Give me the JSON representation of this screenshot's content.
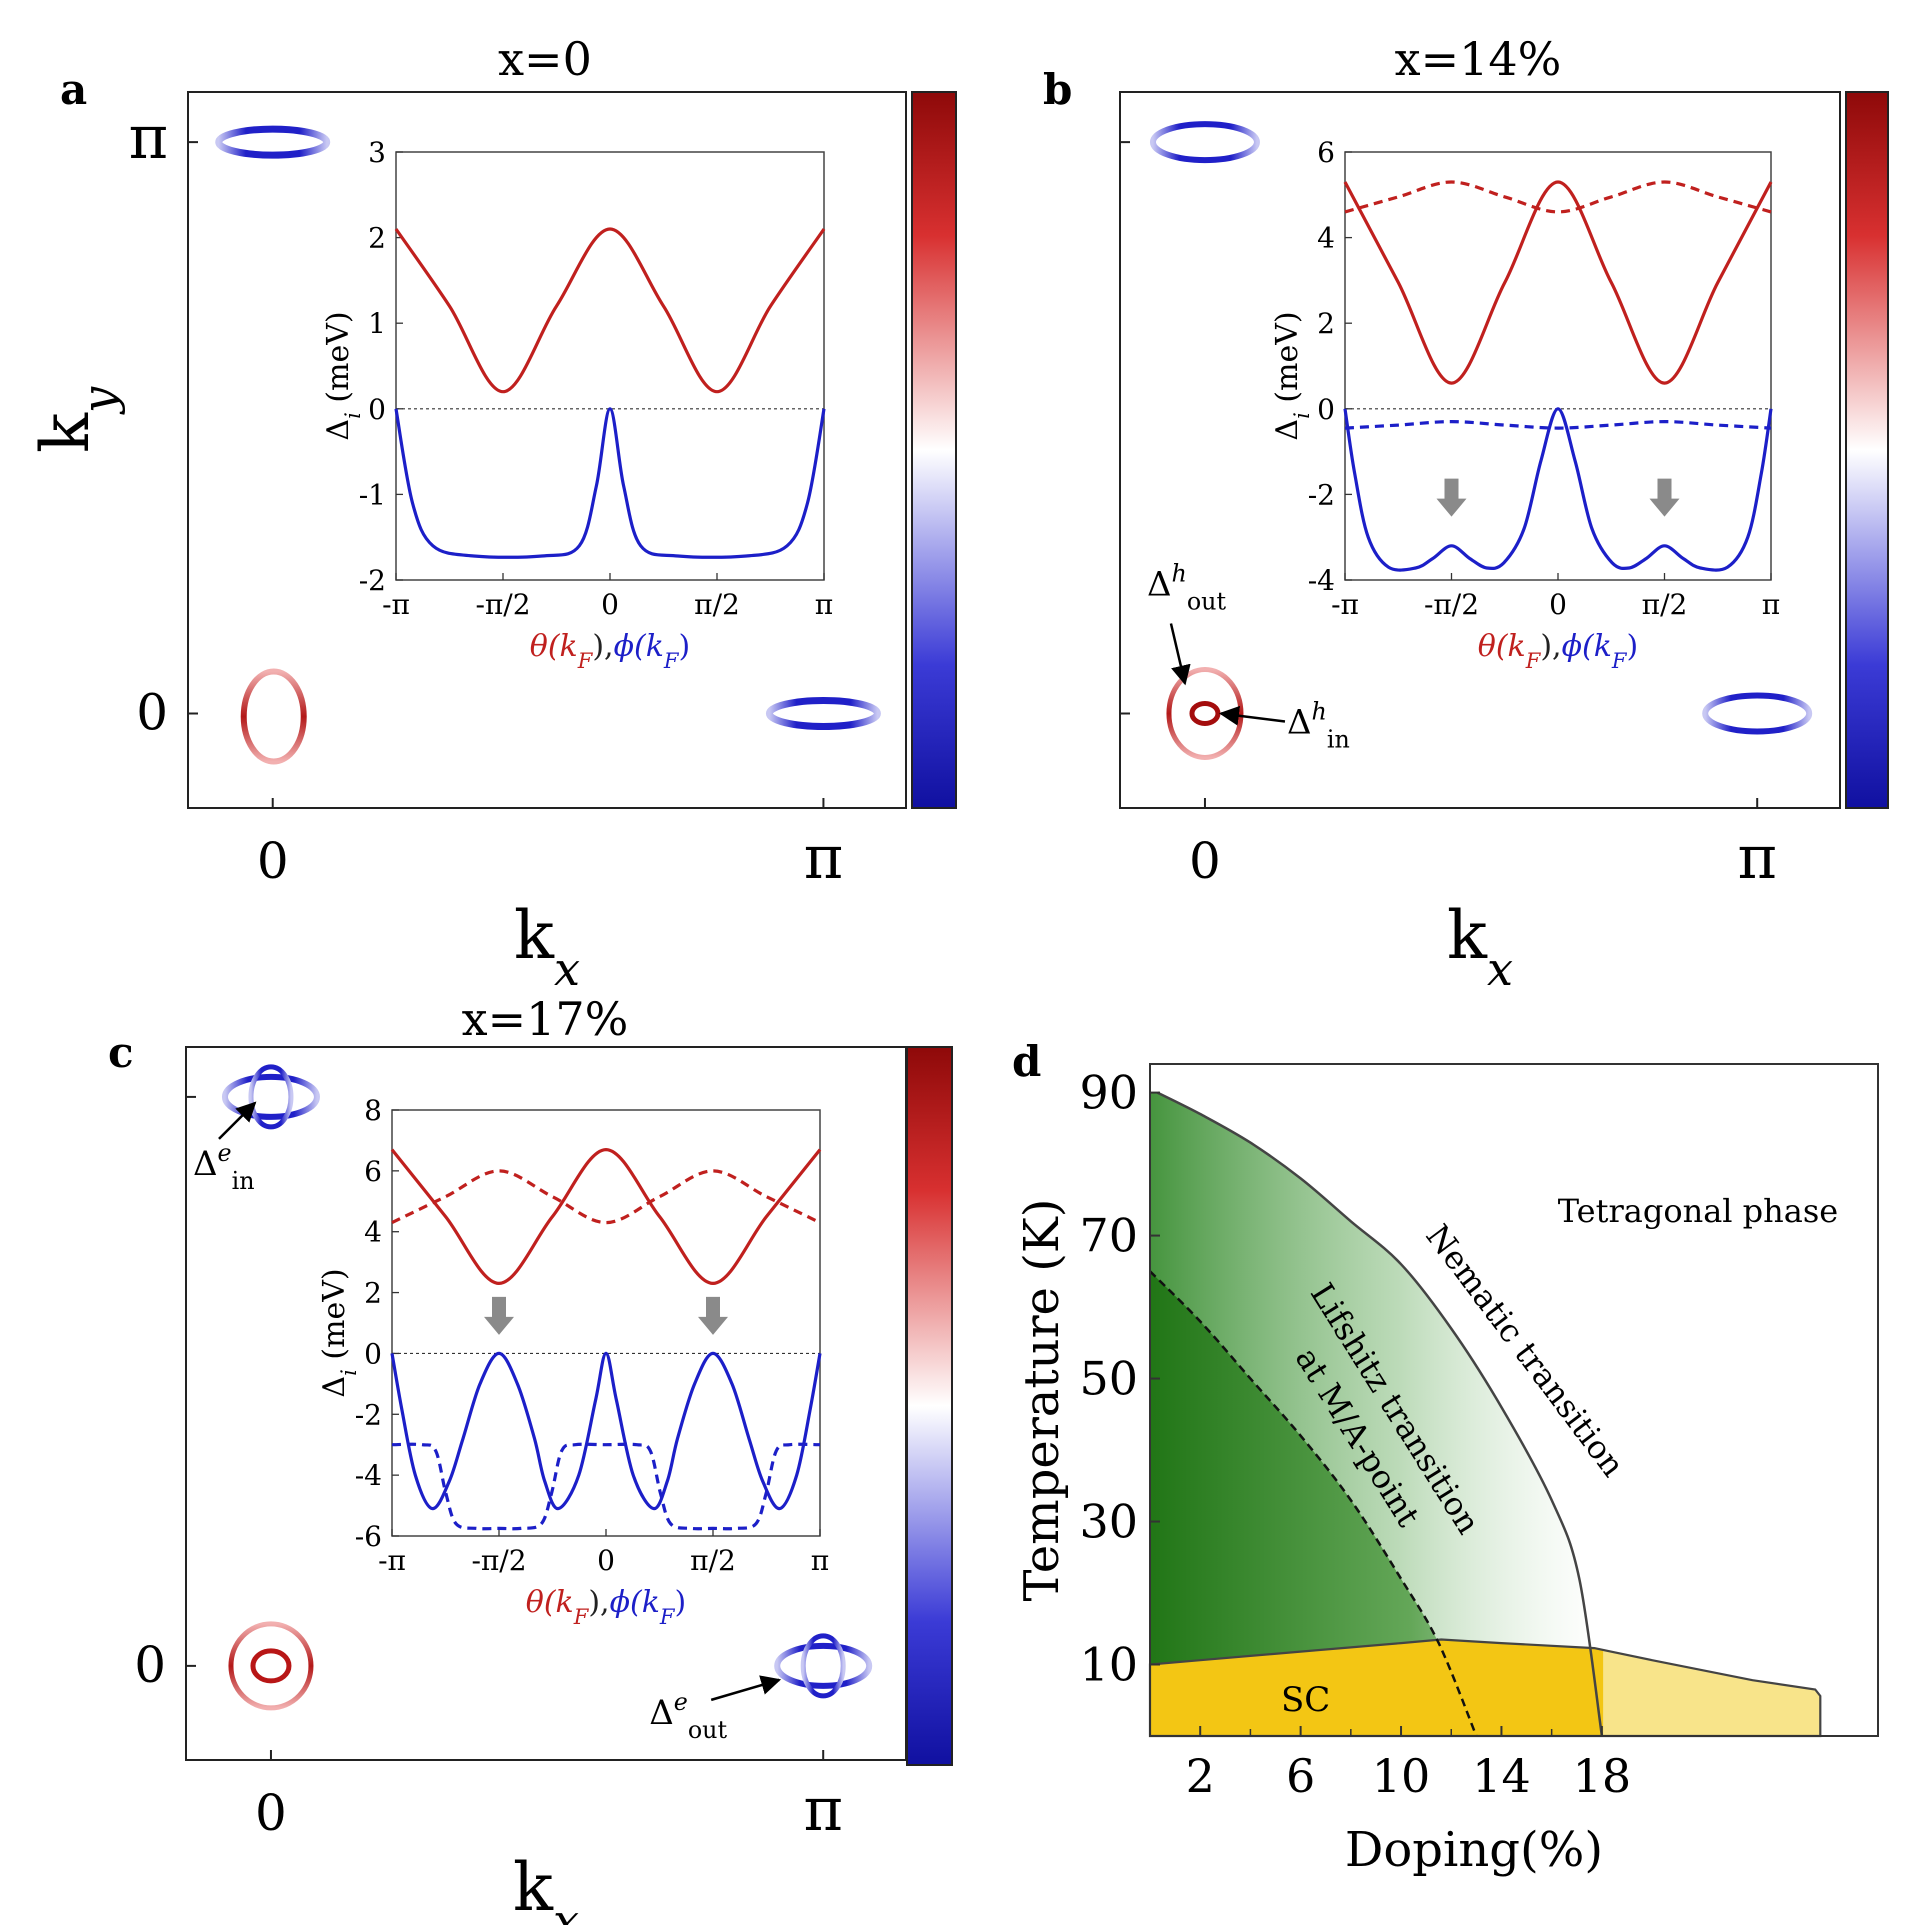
{
  "chart_data": [
    {
      "type": "line",
      "panel": "a",
      "title": "x=0",
      "main_axes": {
        "xlabel": "k",
        "xlabel_sub": "x",
        "ylabel": "k",
        "ylabel_sub": "y",
        "xticks": [
          "0",
          "π"
        ],
        "yticks": [
          "0",
          "π"
        ]
      },
      "inset": {
        "ylabel": "Δ",
        "ylabel_sub": "i",
        "ylabel_unit": "(meV)",
        "xlabel_theta": "θ(k",
        "xlabel_theta_sub": "F",
        "xlabel_sep": "),",
        "xlabel_phi": "ϕ(k",
        "xlabel_phi_sub": "F",
        "xlabel_end": ")",
        "xticks": [
          "-π",
          "-π/2",
          "0",
          "π/2",
          "π"
        ],
        "yticks": [
          "-2",
          "-1",
          "0",
          "1",
          "2",
          "3"
        ],
        "ylim": [
          -2,
          3
        ],
        "xlim": [
          -3.1416,
          3.1416
        ],
        "series": [
          {
            "kind": "hole-solid",
            "color": "#c0201e",
            "dashed": false,
            "x": [
              -3.1416,
              -2.3562,
              -1.5708,
              -0.7854,
              0,
              0.7854,
              1.5708,
              2.3562,
              3.1416
            ],
            "y": [
              2.1,
              1.2,
              0.2,
              1.2,
              2.1,
              1.2,
              0.2,
              1.2,
              2.1
            ]
          },
          {
            "kind": "electron-solid",
            "color": "#1c1fc8",
            "dashed": false,
            "x": [
              -3.1416,
              -2.9,
              -2.6,
              -2.0,
              -1.0,
              -0.45,
              -0.2,
              0,
              0.2,
              0.45,
              1.0,
              2.0,
              2.6,
              2.9,
              3.1416
            ],
            "y": [
              0,
              -1.1,
              -1.6,
              -1.72,
              -1.72,
              -1.6,
              -0.9,
              0,
              -0.9,
              -1.6,
              -1.72,
              -1.72,
              -1.6,
              -1.1,
              0
            ]
          }
        ]
      },
      "colorbar": {
        "colors": [
          "#1515a0",
          "#ffffff",
          "#9e0b0b"
        ]
      }
    },
    {
      "type": "line",
      "panel": "b",
      "title": "x=14%",
      "main_axes": {
        "xlabel": "k",
        "xlabel_sub": "x",
        "xticks": [
          "0",
          "π"
        ]
      },
      "annotations": [
        {
          "text": "Δ",
          "sup": "h",
          "sub": "out"
        },
        {
          "text": "Δ",
          "sup": "h",
          "sub": "in"
        }
      ],
      "inset": {
        "ylabel": "Δ",
        "ylabel_sub": "i",
        "ylabel_unit": "(meV)",
        "xlabel_theta": "θ(k",
        "xlabel_theta_sub": "F",
        "xlabel_sep": "),",
        "xlabel_phi": "ϕ(k",
        "xlabel_phi_sub": "F",
        "xlabel_end": ")",
        "xticks": [
          "-π",
          "-π/2",
          "0",
          "π/2",
          "π"
        ],
        "yticks": [
          "-4",
          "-2",
          "0",
          "2",
          "4",
          "6"
        ],
        "ylim": [
          -4,
          6
        ],
        "xlim": [
          -3.1416,
          3.1416
        ],
        "series": [
          {
            "kind": "hole-solid",
            "color": "#c0201e",
            "dashed": false,
            "x": [
              -3.1416,
              -2.3562,
              -1.5708,
              -0.7854,
              0,
              0.7854,
              1.5708,
              2.3562,
              3.1416
            ],
            "y": [
              5.3,
              2.95,
              0.6,
              2.95,
              5.3,
              2.95,
              0.6,
              2.95,
              5.3
            ]
          },
          {
            "kind": "hole-dashed",
            "color": "#c0201e",
            "dashed": true,
            "x": [
              -3.1416,
              -2.3562,
              -1.5708,
              -0.7854,
              0,
              0.7854,
              1.5708,
              2.3562,
              3.1416
            ],
            "y": [
              4.6,
              4.95,
              5.3,
              4.95,
              4.6,
              4.95,
              5.3,
              4.95,
              4.6
            ]
          },
          {
            "kind": "electron-solid",
            "color": "#1c1fc8",
            "dashed": false,
            "x": [
              -3.1416,
              -3.0,
              -2.8,
              -2.5,
              -2.1,
              -1.85,
              -1.5708,
              -1.3,
              -1.05,
              -0.8,
              -0.5,
              -0.25,
              0,
              0.25,
              0.5,
              0.8,
              1.05,
              1.3,
              1.5708,
              1.85,
              2.1,
              2.5,
              2.8,
              3.0,
              3.1416
            ],
            "y": [
              0,
              -1.5,
              -3.0,
              -3.7,
              -3.72,
              -3.5,
              -3.2,
              -3.5,
              -3.72,
              -3.6,
              -2.8,
              -1.2,
              0,
              -1.2,
              -2.8,
              -3.6,
              -3.72,
              -3.5,
              -3.2,
              -3.5,
              -3.72,
              -3.7,
              -3.0,
              -1.5,
              0
            ]
          },
          {
            "kind": "electron-dashed",
            "color": "#1c1fc8",
            "dashed": true,
            "x": [
              -3.1416,
              -2.3562,
              -1.5708,
              -0.7854,
              0,
              0.7854,
              1.5708,
              2.3562,
              3.1416
            ],
            "y": [
              -0.45,
              -0.38,
              -0.3,
              -0.38,
              -0.45,
              -0.38,
              -0.3,
              -0.38,
              -0.45
            ]
          }
        ],
        "arrows_at_x": [
          -1.5708,
          1.5708
        ]
      },
      "colorbar": {
        "colors": [
          "#1515a0",
          "#ffffff",
          "#9e0b0b"
        ]
      }
    },
    {
      "type": "line",
      "panel": "c",
      "title": "x=17%",
      "main_axes": {
        "xlabel": "k",
        "xlabel_sub": "x",
        "xticks": [
          "0",
          "π"
        ],
        "yticks": [
          "0"
        ]
      },
      "annotations": [
        {
          "text": "Δ",
          "sup": "e",
          "sub": "in"
        },
        {
          "text": "Δ",
          "sup": "e",
          "sub": "out"
        }
      ],
      "inset": {
        "ylabel": "Δ",
        "ylabel_sub": "i",
        "ylabel_unit": "(meV)",
        "xlabel_theta": "θ(k",
        "xlabel_theta_sub": "F",
        "xlabel_sep": "),",
        "xlabel_phi": "ϕ(k",
        "xlabel_phi_sub": "F",
        "xlabel_end": ")",
        "xticks": [
          "-π",
          "-π/2",
          "0",
          "π/2",
          "π"
        ],
        "yticks": [
          "-6",
          "-4",
          "-2",
          "0",
          "2",
          "4",
          "6",
          "8"
        ],
        "ylim": [
          -6,
          8
        ],
        "xlim": [
          -3.1416,
          3.1416
        ],
        "series": [
          {
            "kind": "hole-solid",
            "color": "#c0201e",
            "dashed": false,
            "x": [
              -3.1416,
              -2.3562,
              -1.5708,
              -0.7854,
              0,
              0.7854,
              1.5708,
              2.3562,
              3.1416
            ],
            "y": [
              6.7,
              4.5,
              2.3,
              4.5,
              6.7,
              4.5,
              2.3,
              4.5,
              6.7
            ]
          },
          {
            "kind": "hole-dashed",
            "color": "#c0201e",
            "dashed": true,
            "x": [
              -3.1416,
              -2.3562,
              -1.5708,
              -0.7854,
              0,
              0.7854,
              1.5708,
              2.3562,
              3.1416
            ],
            "y": [
              4.3,
              5.15,
              6.0,
              5.15,
              4.3,
              5.15,
              6.0,
              5.15,
              4.3
            ]
          },
          {
            "kind": "electron-solid",
            "color": "#1c1fc8",
            "dashed": false,
            "x": [
              -3.1416,
              -3.0,
              -2.8,
              -2.55,
              -2.3,
              -2.1,
              -1.85,
              -1.5708,
              -1.3,
              -1.05,
              -0.9,
              -0.7,
              -0.4,
              -0.15,
              0,
              0.15,
              0.4,
              0.7,
              0.9,
              1.05,
              1.3,
              1.5708,
              1.85,
              2.1,
              2.3,
              2.55,
              2.8,
              3.0,
              3.1416
            ],
            "y": [
              0,
              -1.8,
              -4.0,
              -5.1,
              -4.2,
              -2.8,
              -1.0,
              0,
              -1.0,
              -2.8,
              -4.2,
              -5.1,
              -4.0,
              -1.5,
              0,
              -1.5,
              -4.0,
              -5.1,
              -4.2,
              -2.8,
              -1.0,
              0,
              -1.0,
              -2.8,
              -4.2,
              -5.1,
              -4.0,
              -1.8,
              0
            ]
          },
          {
            "kind": "electron-dashed",
            "color": "#1c1fc8",
            "dashed": true,
            "x": [
              -3.1416,
              -2.7,
              -2.5,
              -2.35,
              -2.2,
              -1.9,
              -1.5708,
              -1.25,
              -0.95,
              -0.8,
              -0.65,
              -0.45,
              0,
              0.45,
              0.65,
              0.8,
              0.95,
              1.25,
              1.5708,
              1.9,
              2.2,
              2.35,
              2.5,
              2.7,
              3.1416
            ],
            "y": [
              -3.0,
              -3.0,
              -3.2,
              -4.6,
              -5.6,
              -5.75,
              -5.75,
              -5.75,
              -5.6,
              -4.6,
              -3.2,
              -3.0,
              -3.0,
              -3.0,
              -3.2,
              -4.6,
              -5.6,
              -5.75,
              -5.75,
              -5.75,
              -5.6,
              -4.6,
              -3.2,
              -3.0,
              -3.0
            ]
          }
        ],
        "arrows_at_x": [
          -1.5708,
          1.5708
        ]
      },
      "colorbar": {
        "colors": [
          "#1515a0",
          "#ffffff",
          "#9e0b0b"
        ]
      }
    },
    {
      "type": "area",
      "panel": "d",
      "title": "",
      "xlabel": "Doping(%)",
      "ylabel": "Temperature (K)",
      "xticks": [
        "2",
        "6",
        "10",
        "14",
        "18"
      ],
      "yticks": [
        "10",
        "30",
        "50",
        "70",
        "90"
      ],
      "xlim": [
        0,
        29
      ],
      "ylim": [
        0,
        94
      ],
      "labels": {
        "tetragonal": "Tetragonal phase",
        "nematic": "Nematic transition",
        "lifshitz_1": "Lifshitz transition",
        "lifshitz_2": "at M/A-point",
        "sc": "SC"
      },
      "nematic_line": {
        "x": [
          0.3,
          2,
          4,
          6,
          8,
          10,
          12,
          14,
          16,
          17.1,
          18.0
        ],
        "y": [
          90,
          87,
          83,
          78,
          72,
          66,
          57,
          46,
          33,
          22,
          0
        ]
      },
      "lifshitz_line": {
        "x": [
          0,
          2,
          4,
          6,
          8,
          10,
          11.5,
          13.0
        ],
        "y": [
          65,
          58,
          50,
          42,
          33,
          22,
          13,
          0
        ]
      },
      "sc_dome": {
        "x": [
          0,
          2,
          4,
          6,
          8,
          10,
          11.6,
          14,
          17.7,
          20,
          24,
          26.5,
          26.7,
          26.7
        ],
        "y": [
          10,
          10.6,
          11.2,
          11.8,
          12.4,
          13.0,
          13.5,
          13.0,
          12.3,
          10.6,
          7.8,
          6.5,
          5.6,
          0
        ]
      },
      "colors": {
        "nematic_fill": "#1f7a14",
        "sc_fill": "#f3c614",
        "sc_light": "#f8e48a"
      }
    }
  ]
}
